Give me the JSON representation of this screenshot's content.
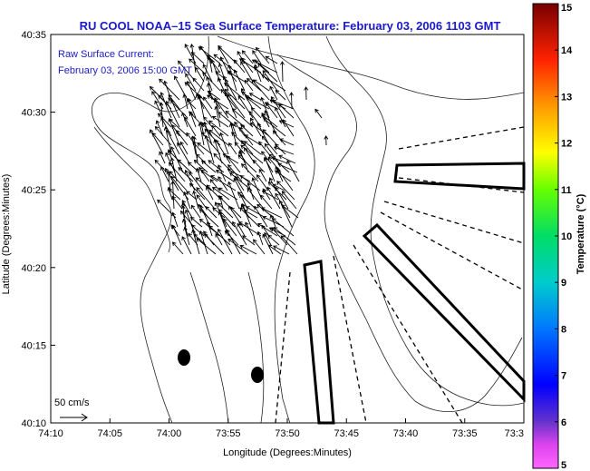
{
  "chart_data": {
    "type": "vector-field",
    "title": "RU COOL  NOAA–15  Sea Surface Temperature:  February 03, 2006 1103 GMT",
    "legend": {
      "line1": "Raw Surface Current:",
      "line2": "February 03, 2006 15:00 GMT"
    },
    "scale_label": "50 cm/s",
    "xlabel": "Longitude (Degrees:Minutes)",
    "ylabel": "Latitude (Degrees:Minutes)",
    "x_ticks": [
      "74:10",
      "74:05",
      "74:00",
      "73:55",
      "73:50",
      "73:45",
      "73:40",
      "73:35",
      "73:3"
    ],
    "y_ticks": [
      "40:35",
      "40:30",
      "40:25",
      "40:20",
      "40:15",
      "40:10"
    ],
    "xlim_minutes": [
      10,
      -30
    ],
    "ylim_minutes": [
      10,
      35
    ],
    "grid": false,
    "colorbar": {
      "label": "Temperature (°C)",
      "ticks": [
        "15",
        "14",
        "13",
        "12",
        "11",
        "10",
        "9",
        "8",
        "7",
        "6",
        "5"
      ],
      "range": [
        5,
        15
      ]
    },
    "markers": [
      {
        "label": "",
        "lon_min": -1.2,
        "lat_min": 14.6
      },
      {
        "label": "",
        "lon_min": -7.2,
        "lat_min": 13.4
      }
    ]
  }
}
